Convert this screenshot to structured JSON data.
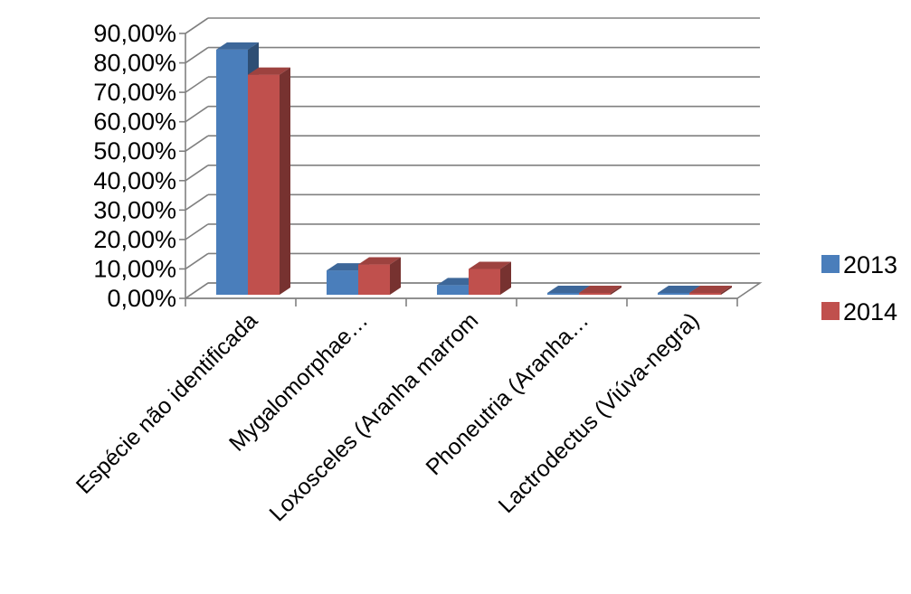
{
  "chart_data": {
    "type": "bar",
    "style": "3d-clustered-column",
    "categories": [
      "Espécie não identificada",
      "Mygalomorphae…",
      "Loxosceles (Aranha marrom",
      "Phoneutria (Aranha…",
      "Lactrodectus (Viúva-negra)"
    ],
    "series": [
      {
        "name": "2013",
        "color": "#4a7ebb",
        "values": [
          84.5,
          9.5,
          4.5,
          0.5,
          0
        ]
      },
      {
        "name": "2014",
        "color": "#c0504d",
        "values": [
          76.0,
          11.5,
          10.0,
          0,
          1.0
        ]
      }
    ],
    "ylim": [
      0,
      90
    ],
    "y_ticks": [
      "0,00%",
      "10,00%",
      "20,00%",
      "30,00%",
      "40,00%",
      "50,00%",
      "60,00%",
      "70,00%",
      "80,00%",
      "90,00%"
    ],
    "grid": true,
    "legend_position": "right"
  }
}
